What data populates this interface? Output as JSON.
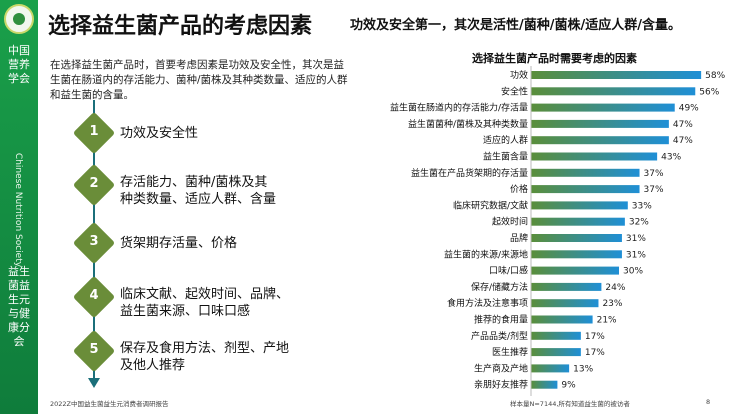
{
  "sidebar": {
    "org_cn": "中国营养学会",
    "org_en": "Chinese Nutrition Society",
    "branch_cn": "益生菌益生元与健康分会"
  },
  "header": {
    "title": "选择益生菌产品的考虑因素",
    "subtitle": "功效及安全第一，其次是活性/菌种/菌株/适应人群/含量。"
  },
  "intro": "在选择益生菌产品时，首要考虑因素是功效及安全性，其次是益生菌在肠道内的存活能力、菌种/菌株及其种类数量、适应的人群和益生菌的含量。",
  "steps": [
    {
      "num": "1",
      "text": "功效及安全性"
    },
    {
      "num": "2",
      "text": "存活能力、菌种/菌株及其种类数量、适应人群、含量"
    },
    {
      "num": "3",
      "text": "货架期存活量、价格"
    },
    {
      "num": "4",
      "text": "临床文献、起效时间、品牌、益生菌来源、口味口感"
    },
    {
      "num": "5",
      "text": "保存及食用方法、剂型、产地及他人推荐"
    }
  ],
  "chart_data": {
    "type": "bar",
    "orientation": "horizontal",
    "title": "选择益生菌产品时需要考虑的因素",
    "unit": "%",
    "categories": [
      "功效",
      "安全性",
      "益生菌在肠道内的存活能力/存活量",
      "益生菌菌种/菌株及其种类数量",
      "适应的人群",
      "益生菌含量",
      "益生菌在产品货架期的存活量",
      "价格",
      "临床研究数据/文献",
      "起效时间",
      "品牌",
      "益生菌的来源/来源地",
      "口味/口感",
      "保存/储藏方法",
      "食用方法及注意事项",
      "推荐的食用量",
      "产品品类/剂型",
      "医生推荐",
      "生产商及产地",
      "亲朋好友推荐"
    ],
    "values": [
      58,
      56,
      49,
      47,
      47,
      43,
      37,
      37,
      33,
      32,
      31,
      31,
      30,
      24,
      23,
      21,
      17,
      17,
      13,
      9
    ],
    "labels": [
      "58%",
      "56%",
      "49%",
      "47%",
      "47%",
      "43%",
      "37%",
      "37%",
      "33%",
      "32%",
      "31%",
      "31%",
      "30%",
      "24%",
      "23%",
      "21%",
      "17%",
      "17%",
      "13%",
      "9%"
    ],
    "color_start": "#5a8e3a",
    "color_end": "#1f8fd6"
  },
  "footer": {
    "left": "2022Z中国益生菌益生元消费者调研报告",
    "right": "样本量N=7144,所有知道益生菌的被访者",
    "page": "8"
  }
}
